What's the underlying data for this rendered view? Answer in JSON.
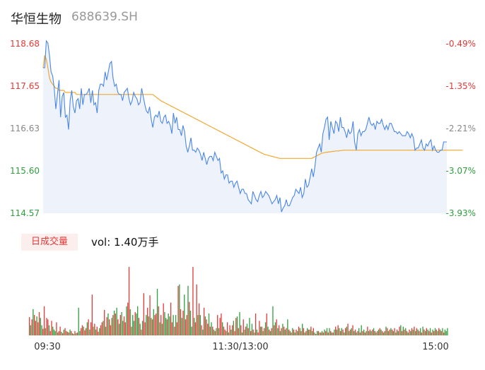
{
  "header": {
    "name": "华恒生物",
    "code": "688639.SH"
  },
  "volume_panel": {
    "tag_label": "日成交量",
    "vol_text": "vol: 1.40万手"
  },
  "colors": {
    "up": "#e53935",
    "down": "#2e9e3e",
    "price_line": "#4a86e8",
    "avg_line": "#f0a830",
    "area_fill": "#eef3fb"
  },
  "chart_data": [
    {
      "type": "line",
      "title": "",
      "y_ticks": [
        "118.68",
        "117.65",
        "116.63",
        "115.60",
        "114.57"
      ],
      "pct_ticks": [
        "-0.49%",
        "-1.35%",
        "-2.21%",
        "-3.07%",
        "-3.93%"
      ],
      "x_ticks": [
        "09:30",
        "11:30/13:00",
        "15:00"
      ],
      "ylim": [
        114.57,
        118.68
      ],
      "series": [
        {
          "values": [
            118.1,
            118.1,
            118.75,
            118.7,
            118.4,
            118.0,
            117.9,
            117.6,
            117.1,
            117.45,
            117.8,
            116.9,
            117.4,
            117.5,
            116.9,
            116.95,
            116.6,
            117.3,
            117.55,
            117.15,
            117.0,
            117.3,
            117.35,
            117.1,
            117.6,
            117.2,
            117.45,
            117.45,
            117.5,
            117.6,
            117.25,
            117.55,
            117.2,
            117.25,
            117.0,
            117.55,
            117.7,
            117.7,
            117.65,
            118.0,
            117.8,
            118.0,
            118.2,
            118.25,
            117.85,
            117.65,
            117.7,
            117.5,
            117.45,
            117.45,
            117.3,
            117.5,
            117.55,
            117.6,
            117.35,
            117.2,
            117.3,
            117.5,
            117.4,
            117.35,
            117.2,
            117.25,
            117.6,
            117.4,
            117.2,
            117.05,
            117.0,
            117.15,
            116.85,
            116.65,
            116.9,
            116.95,
            116.9,
            117.05,
            116.8,
            116.75,
            116.9,
            116.95,
            116.75,
            116.8,
            116.7,
            116.5,
            117.0,
            116.75,
            116.9,
            116.6,
            116.6,
            116.45,
            116.7,
            116.55,
            116.2,
            116.05,
            116.2,
            116.4,
            116.1,
            116.1,
            116.05,
            116.15,
            116.1,
            116.0,
            115.85,
            116.05,
            115.9,
            115.75,
            115.9,
            115.95,
            115.95,
            115.85,
            116.05,
            115.95,
            115.85,
            115.9,
            115.55,
            115.6,
            115.4,
            115.5,
            115.5,
            115.3,
            115.35,
            115.35,
            115.2,
            115.3,
            115.35,
            115.2,
            115.05,
            115.15,
            115.15,
            115.05,
            115.05,
            114.9,
            114.85,
            114.8,
            115.1,
            115.0,
            114.9,
            114.85,
            115.0,
            115.1,
            114.95,
            115.0,
            115.1,
            115.05,
            115.0,
            114.9,
            114.8,
            114.85,
            114.9,
            115.0,
            114.8,
            114.95,
            114.6,
            114.7,
            114.75,
            114.9,
            114.75,
            114.75,
            114.85,
            114.95,
            115.0,
            115.15,
            115.1,
            115.05,
            115.2,
            114.95,
            115.05,
            115.4,
            115.2,
            115.25,
            115.45,
            115.65,
            115.45,
            115.7,
            116.05,
            116.15,
            116.25,
            116.05,
            116.5,
            116.65,
            116.85,
            116.9,
            116.35,
            116.8,
            116.65,
            116.5,
            116.8,
            116.75,
            116.55,
            116.9,
            116.65,
            116.65,
            116.55,
            116.4,
            116.6,
            116.5,
            116.55,
            116.8,
            116.3,
            116.1,
            116.5,
            116.6,
            116.45,
            116.55,
            116.55,
            116.6,
            116.75,
            116.9,
            116.75,
            116.7,
            116.75,
            116.6,
            116.8,
            116.75,
            116.75,
            116.85,
            116.7,
            116.6,
            116.7,
            116.6,
            116.75,
            116.75,
            116.65,
            116.55,
            116.55,
            116.5,
            116.55,
            116.5,
            116.45,
            116.45,
            116.45,
            116.55,
            116.5,
            116.4,
            116.5,
            116.4,
            116.1,
            116.15,
            116.15,
            116.25,
            116.35,
            116.15,
            116.1,
            116.25,
            116.2,
            116.3,
            116.35,
            116.1,
            116.2,
            116.1,
            116.05,
            116.05,
            116.1,
            116.1,
            116.3,
            116.3,
            116.3
          ]
        },
        {
          "values": [
            118.1,
            118.4,
            118.3,
            118.1,
            117.85,
            117.75,
            117.7,
            117.65,
            117.6,
            117.6,
            117.55,
            117.55,
            117.55,
            117.55,
            117.5,
            117.5,
            117.5,
            117.5,
            117.5,
            117.5,
            117.5,
            117.45,
            117.45,
            117.45,
            117.45,
            117.45,
            117.45,
            117.45,
            117.45,
            117.45,
            117.45,
            117.45,
            117.45,
            117.45,
            117.45,
            117.45,
            117.45,
            117.45,
            117.45,
            117.45,
            117.45,
            117.45,
            117.45,
            117.45,
            117.45,
            117.45,
            117.45,
            117.45,
            117.45,
            117.45,
            117.45,
            117.45,
            117.45,
            117.45,
            117.45,
            117.45,
            117.45,
            117.45,
            117.45,
            117.45,
            117.45,
            117.45,
            117.45,
            117.45,
            117.45,
            117.45,
            117.45,
            117.45,
            117.45,
            117.45,
            117.42,
            117.39,
            117.36,
            117.33,
            117.3,
            117.28,
            117.26,
            117.24,
            117.22,
            117.2,
            117.18,
            117.16,
            117.14,
            117.12,
            117.1,
            117.08,
            117.06,
            117.04,
            117.02,
            117.0,
            116.98,
            116.96,
            116.94,
            116.92,
            116.9,
            116.88,
            116.86,
            116.84,
            116.82,
            116.8,
            116.78,
            116.76,
            116.74,
            116.72,
            116.7,
            116.68,
            116.66,
            116.64,
            116.62,
            116.6,
            116.58,
            116.56,
            116.54,
            116.52,
            116.5,
            116.48,
            116.46,
            116.44,
            116.42,
            116.4,
            116.38,
            116.36,
            116.34,
            116.32,
            116.3,
            116.28,
            116.26,
            116.24,
            116.22,
            116.2,
            116.18,
            116.16,
            116.14,
            116.12,
            116.1,
            116.08,
            116.06,
            116.04,
            116.02,
            116.0,
            115.99,
            115.98,
            115.97,
            115.96,
            115.95,
            115.94,
            115.93,
            115.92,
            115.91,
            115.9,
            115.9,
            115.9,
            115.9,
            115.9,
            115.9,
            115.9,
            115.9,
            115.9,
            115.9,
            115.9,
            115.9,
            115.9,
            115.9,
            115.9,
            115.9,
            115.9,
            115.9,
            115.9,
            115.9,
            115.9,
            115.92,
            115.94,
            115.96,
            115.98,
            116.0,
            116.02,
            116.03,
            116.04,
            116.05,
            116.05,
            116.06,
            116.06,
            116.07,
            116.07,
            116.08,
            116.08,
            116.08,
            116.09,
            116.09,
            116.1,
            116.1,
            116.1,
            116.1,
            116.1,
            116.1,
            116.1,
            116.1,
            116.1,
            116.1,
            116.1,
            116.1,
            116.1,
            116.1,
            116.1,
            116.1,
            116.1,
            116.1,
            116.1,
            116.1,
            116.1,
            116.1,
            116.1,
            116.1,
            116.1,
            116.1,
            116.1,
            116.1,
            116.1,
            116.1,
            116.1,
            116.1,
            116.1,
            116.1,
            116.1,
            116.1,
            116.1,
            116.1,
            116.1,
            116.1,
            116.1,
            116.1,
            116.1,
            116.1,
            116.1,
            116.1,
            116.1,
            116.1,
            116.1,
            116.1,
            116.1,
            116.1,
            116.1,
            116.1,
            116.1,
            116.1,
            116.1,
            116.1,
            116.1,
            116.1,
            116.1,
            116.1,
            116.1,
            116.1,
            116.1,
            116.1,
            116.1,
            116.1,
            116.1,
            116.1,
            116.1,
            116.1,
            116.1,
            116.1,
            116.1,
            116.1
          ]
        }
      ]
    },
    {
      "type": "bar",
      "title": "",
      "x_ticks": [
        "09:30",
        "11:30/13:00",
        "15:00"
      ],
      "values": [
        25,
        14,
        22,
        36,
        28,
        20,
        26,
        18,
        32,
        24,
        14,
        9,
        40,
        10,
        24,
        22,
        14,
        6,
        20,
        12,
        8,
        6,
        18,
        4,
        6,
        12,
        5,
        3,
        8,
        10,
        6,
        5,
        4,
        8,
        6,
        3,
        2,
        6,
        3,
        4,
        38,
        6,
        10,
        14,
        12,
        7,
        10,
        18,
        22,
        8,
        18,
        56,
        12,
        16,
        8,
        12,
        5,
        10,
        14,
        18,
        20,
        35,
        12,
        25,
        30,
        22,
        14,
        24,
        28,
        34,
        30,
        38,
        22,
        16,
        28,
        32,
        20,
        26,
        18,
        40,
        45,
        94,
        36,
        12,
        28,
        20,
        32,
        30,
        40,
        24,
        16,
        8,
        20,
        58,
        18,
        28,
        38,
        26,
        55,
        24,
        22,
        36,
        28,
        30,
        64,
        40,
        18,
        28,
        16,
        44,
        32,
        24,
        22,
        30,
        26,
        45,
        18,
        28,
        12,
        28,
        18,
        68,
        70,
        36,
        24,
        34,
        56,
        22,
        28,
        68,
        46,
        34,
        12,
        94,
        24,
        18,
        70,
        28,
        44,
        28,
        14,
        8,
        38,
        26,
        22,
        16,
        30,
        12,
        18,
        12,
        8,
        6,
        10,
        28,
        10,
        24,
        30,
        18,
        12,
        8,
        6,
        18,
        4,
        14,
        8,
        14,
        20,
        6,
        24,
        26,
        10,
        32,
        14,
        4,
        22,
        8,
        12,
        16,
        10,
        24,
        6,
        16,
        8,
        4,
        30,
        8,
        4,
        20,
        12,
        12,
        6,
        10,
        18,
        30,
        12,
        8,
        6,
        10,
        40,
        14,
        18,
        22,
        10,
        14,
        6,
        10,
        16,
        12,
        8,
        10,
        22,
        8,
        6,
        4,
        10,
        8,
        4,
        8,
        6,
        12,
        10,
        6,
        16,
        10,
        4,
        6,
        10,
        8,
        8,
        12,
        6,
        10,
        4,
        2,
        6,
        6,
        4,
        4,
        6,
        4,
        8,
        6,
        10,
        4,
        10,
        6,
        4,
        4,
        8,
        12,
        8,
        14,
        10,
        6,
        10,
        8,
        4,
        10,
        12,
        16,
        6,
        8,
        10,
        14,
        6,
        8,
        4,
        6,
        10,
        4,
        14,
        6,
        8,
        4,
        6,
        12,
        6,
        8,
        6,
        8,
        10,
        6,
        4,
        6,
        8,
        10,
        8,
        6,
        4,
        6,
        12,
        10,
        6,
        8,
        10,
        8,
        6,
        10,
        4,
        8,
        6,
        12,
        14,
        6,
        12,
        8,
        10,
        6,
        4,
        8,
        6,
        10,
        8,
        12,
        6,
        10,
        8,
        6,
        10,
        4,
        12,
        8,
        6,
        10,
        8,
        6,
        10,
        4,
        8,
        6,
        10,
        8,
        6,
        10,
        8,
        6,
        10,
        4,
        8,
        6,
        10
      ],
      "up_flags": [
        1,
        0,
        1,
        0,
        1,
        1,
        0,
        1,
        1,
        0,
        0,
        1,
        1,
        0,
        1,
        1,
        0,
        1,
        1,
        0,
        0,
        0,
        1,
        0,
        1,
        1,
        0,
        1,
        0,
        1,
        1,
        0,
        1,
        0,
        1,
        0,
        1,
        1,
        0,
        1,
        0,
        0,
        1,
        1,
        0,
        1,
        1,
        0,
        1,
        0,
        1,
        1,
        0,
        1,
        0,
        1,
        1,
        0,
        1,
        1,
        0,
        1,
        0,
        1,
        0,
        1,
        1,
        0,
        1,
        0,
        1,
        0,
        1,
        0,
        1,
        0,
        0,
        1,
        1,
        0,
        1,
        1,
        0,
        1,
        0,
        0,
        1,
        0,
        0,
        1,
        0,
        1,
        0,
        1,
        1,
        0,
        1,
        0,
        1,
        0,
        1,
        0,
        1,
        1,
        0,
        1,
        0,
        1,
        0,
        1,
        0,
        0,
        1,
        0,
        0,
        1,
        1,
        0,
        1,
        0,
        1,
        1,
        0,
        1,
        0,
        1,
        0,
        1,
        1,
        0,
        1,
        0,
        0,
        1,
        0,
        1,
        1,
        0,
        1,
        0,
        1,
        0,
        1,
        0,
        1,
        1,
        0,
        1,
        0,
        1,
        0,
        1,
        0,
        1,
        0,
        1,
        1,
        0,
        1,
        1,
        0,
        1,
        0,
        1,
        0,
        1,
        0,
        1,
        1,
        0,
        1,
        0,
        1,
        0,
        1,
        0,
        1,
        0,
        1,
        0,
        1,
        0,
        1,
        0,
        1,
        0,
        1,
        1,
        0,
        1,
        0,
        1,
        0,
        1,
        0,
        1,
        0,
        1,
        0,
        1,
        0,
        1,
        0,
        1,
        0,
        1,
        0,
        1,
        0,
        1,
        0,
        1,
        0,
        1,
        0,
        1,
        0,
        1,
        0,
        1,
        0,
        1,
        0,
        1,
        0,
        1,
        0,
        1,
        0,
        1,
        0,
        1,
        0,
        1,
        0,
        1,
        0,
        1,
        0,
        1,
        0,
        1,
        0,
        1,
        0,
        1,
        0,
        1,
        0,
        1,
        0,
        1,
        0,
        1,
        0,
        1,
        0,
        1,
        0,
        1,
        0,
        1,
        0,
        1,
        0,
        1,
        0,
        1,
        0,
        1,
        0,
        1,
        0,
        1,
        0,
        1,
        0,
        1,
        0,
        1,
        0,
        1,
        0,
        1,
        0,
        1,
        0,
        1,
        0,
        1,
        0,
        1,
        0,
        1,
        0,
        1,
        0,
        1,
        0,
        1,
        0,
        1,
        0,
        1,
        0,
        1,
        0,
        1,
        0,
        1,
        0,
        1,
        0,
        1,
        0,
        1,
        0,
        1,
        0,
        1,
        0,
        1,
        0,
        1,
        0,
        1,
        0,
        1,
        0,
        1,
        0,
        1,
        0,
        1,
        0,
        1,
        0,
        1,
        0
      ]
    }
  ]
}
